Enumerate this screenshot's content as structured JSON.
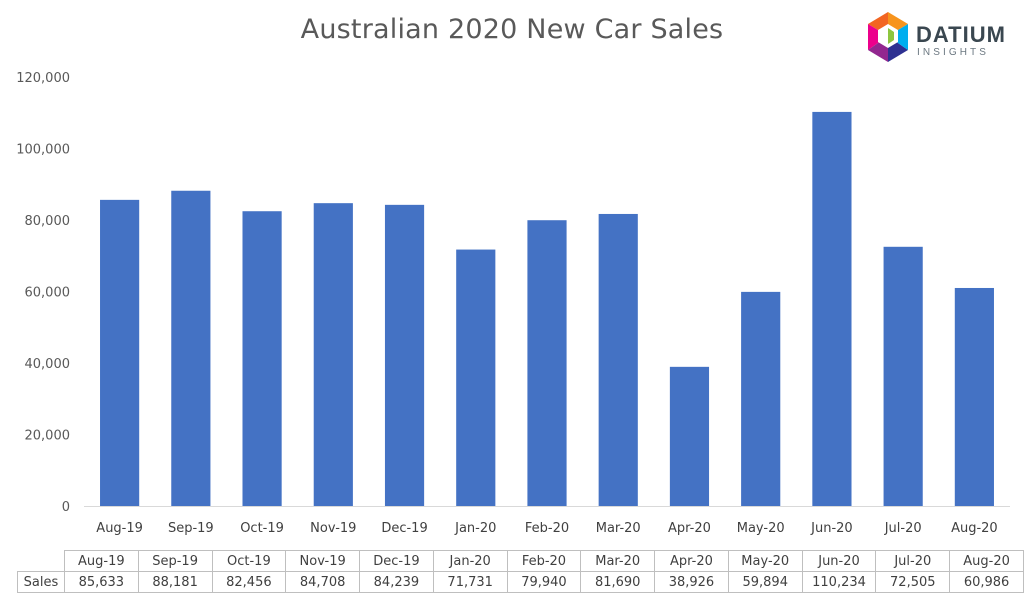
{
  "chart_data": {
    "type": "bar",
    "title": "Australian 2020 New Car Sales",
    "categories": [
      "Aug-19",
      "Sep-19",
      "Oct-19",
      "Nov-19",
      "Dec-19",
      "Jan-20",
      "Feb-20",
      "Mar-20",
      "Apr-20",
      "May-20",
      "Jun-20",
      "Jul-20",
      "Aug-20"
    ],
    "series": [
      {
        "name": "Sales",
        "values": [
          85633,
          88181,
          82456,
          84708,
          84239,
          71731,
          79940,
          81690,
          38926,
          59894,
          110234,
          72505,
          60986
        ],
        "labels": [
          "85,633",
          "88,181",
          "82,456",
          "84,708",
          "84,239",
          "71,731",
          "79,940",
          "81,690",
          "38,926",
          "59,894",
          "110,234",
          "72,505",
          "60,986"
        ],
        "color": "#4472c4"
      }
    ],
    "ylim": [
      0,
      120000
    ],
    "yticks": [
      0,
      20000,
      40000,
      60000,
      80000,
      100000,
      120000
    ],
    "ytick_labels": [
      "0",
      "20,000",
      "40,000",
      "60,000",
      "80,000",
      "100,000",
      "120,000"
    ],
    "xlabel": "",
    "ylabel": "",
    "grid": false,
    "data_table": true
  },
  "brand": {
    "name": "DATIUM",
    "subtitle": "INSIGHTS",
    "colors": [
      "#f26522",
      "#f7941d",
      "#8dc63f",
      "#00aeef",
      "#2e3192",
      "#92278f",
      "#ec008c"
    ]
  }
}
